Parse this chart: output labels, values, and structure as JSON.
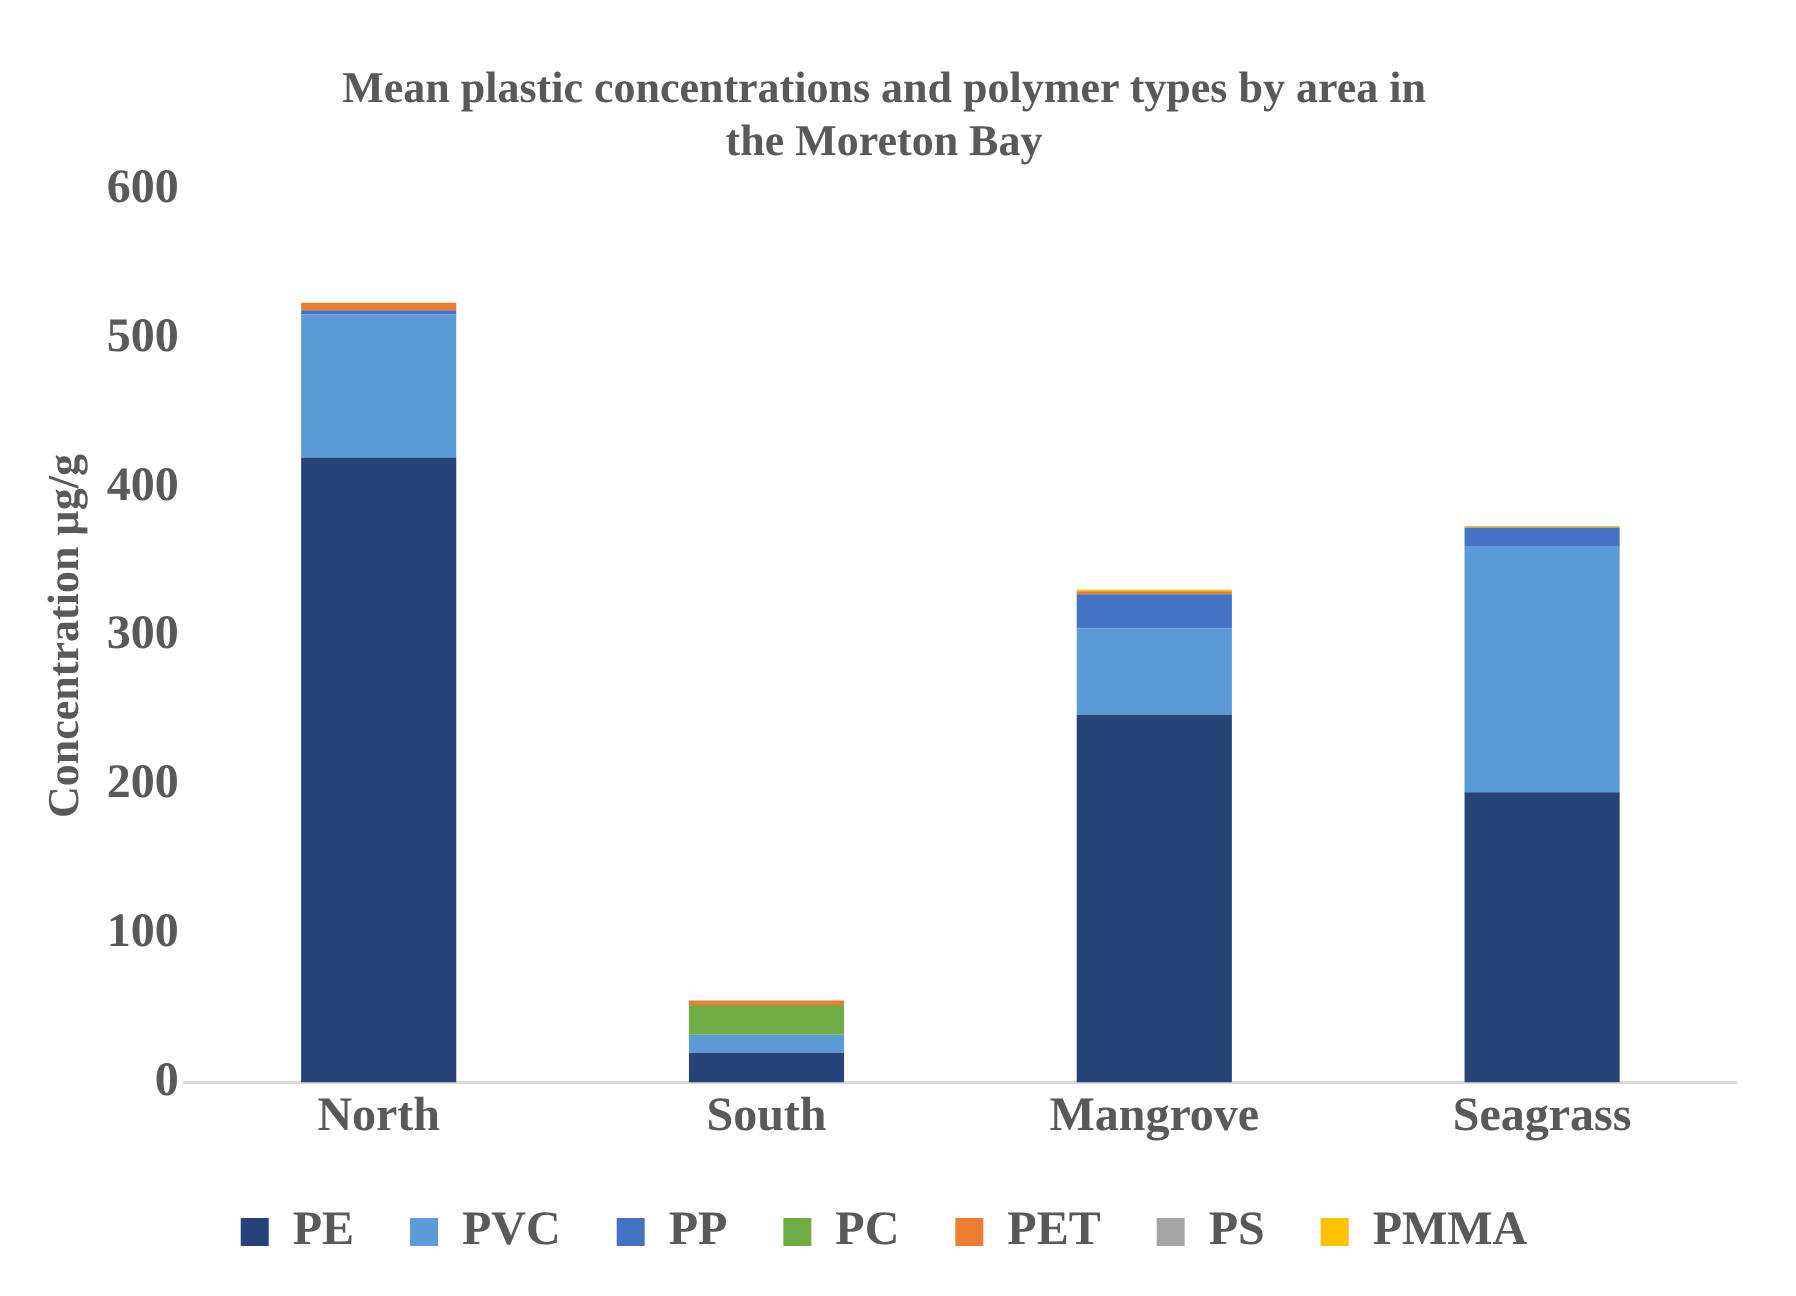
{
  "chart_data": {
    "type": "bar",
    "title": "Mean plastic concentrations and polymer types by area in the Moreton Bay",
    "ylabel": "Concentration µg/g",
    "categories": [
      "North",
      "South",
      "Mangrove",
      "Seagrass"
    ],
    "stacked": true,
    "ylim": [
      0,
      600
    ],
    "yticks": [
      0,
      100,
      200,
      300,
      400,
      500,
      600
    ],
    "grid": false,
    "legend": "bottom",
    "series": [
      {
        "name": "PE",
        "color": "#264478",
        "values": [
          420,
          20,
          247,
          195
        ]
      },
      {
        "name": "PVC",
        "color": "#5b9bd5",
        "values": [
          96,
          12,
          58,
          165
        ]
      },
      {
        "name": "PP",
        "color": "#4472c4",
        "values": [
          3,
          0,
          23,
          13
        ]
      },
      {
        "name": "PC",
        "color": "#70ad47",
        "values": [
          0,
          20,
          0,
          0
        ]
      },
      {
        "name": "PET",
        "color": "#ed7d31",
        "values": [
          5,
          3,
          2,
          0
        ]
      },
      {
        "name": "PS",
        "color": "#a5a5a5",
        "values": [
          0,
          0,
          0,
          0
        ]
      },
      {
        "name": "PMMA",
        "color": "#ffc000",
        "values": [
          0,
          0,
          1,
          1
        ]
      }
    ]
  }
}
